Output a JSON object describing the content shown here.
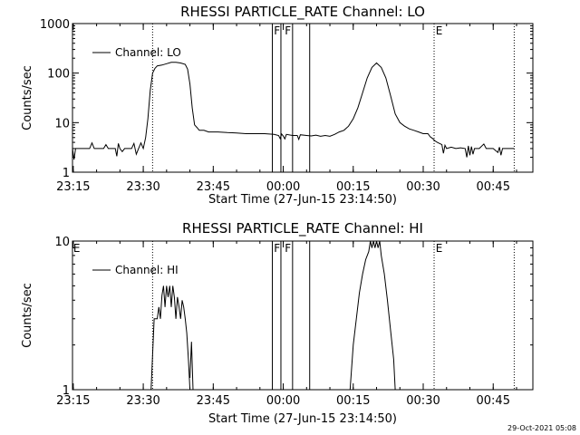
{
  "footer": {
    "timestamp": "29-Oct-2021 05:08"
  },
  "marker_labels": {
    "flag_f": "F",
    "flag_e": "E"
  },
  "chart_data": [
    {
      "type": "line",
      "title": "RHESSI PARTICLE_RATE Channel: LO",
      "xlabel": "Start Time (27-Jun-15 23:14:50)",
      "ylabel": "Counts/sec",
      "yscale": "log",
      "xlim": [
        "23:14:50",
        "00:53:30"
      ],
      "ylim": [
        1,
        1000
      ],
      "x_ticks": [
        "23:15",
        "23:30",
        "23:45",
        "00:00",
        "00:15",
        "00:30",
        "00:45"
      ],
      "y_ticks": [
        "1",
        "10",
        "100",
        "1000"
      ],
      "legend": {
        "position": "top-left",
        "entries": [
          "Channel: LO"
        ]
      },
      "dotted_markers": [
        "23:32:00",
        "00:32:20",
        "00:49:30"
      ],
      "solid_markers": [
        "23:57:40",
        "23:59:30",
        "00:02:00",
        "00:05:40"
      ],
      "marker_flags": [
        {
          "label": "F",
          "time": "23:58:00"
        },
        {
          "label": "F",
          "time": "00:00:20"
        },
        {
          "label": "E",
          "time": "00:32:40"
        }
      ],
      "series": [
        {
          "name": "Channel: LO",
          "points": [
            [
              "23:14:50",
              3
            ],
            [
              "23:15:10",
              1.8
            ],
            [
              "23:15:30",
              3
            ],
            [
              "23:18:30",
              3
            ],
            [
              "23:19:00",
              3.9
            ],
            [
              "23:19:30",
              3
            ],
            [
              "23:21:30",
              3
            ],
            [
              "23:22:00",
              3.6
            ],
            [
              "23:22:30",
              3
            ],
            [
              "23:24:00",
              3
            ],
            [
              "23:24:20",
              2.1
            ],
            [
              "23:24:40",
              3.8
            ],
            [
              "23:25:00",
              3
            ],
            [
              "23:25:30",
              2.6
            ],
            [
              "23:26:00",
              3
            ],
            [
              "23:27:30",
              3
            ],
            [
              "23:28:00",
              3.8
            ],
            [
              "23:28:30",
              2.3
            ],
            [
              "23:29:00",
              3
            ],
            [
              "23:29:30",
              3.9
            ],
            [
              "23:30:00",
              3
            ],
            [
              "23:30:30",
              5
            ],
            [
              "23:31:00",
              12
            ],
            [
              "23:31:30",
              45
            ],
            [
              "23:32:00",
              100
            ],
            [
              "23:32:30",
              125
            ],
            [
              "23:33:00",
              140
            ],
            [
              "23:34:00",
              145
            ],
            [
              "23:35:00",
              155
            ],
            [
              "23:36:00",
              165
            ],
            [
              "23:37:00",
              165
            ],
            [
              "23:38:00",
              160
            ],
            [
              "23:39:00",
              150
            ],
            [
              "23:39:30",
              120
            ],
            [
              "23:40:00",
              60
            ],
            [
              "23:40:30",
              20
            ],
            [
              "23:41:00",
              9
            ],
            [
              "23:41:30",
              8
            ],
            [
              "23:42:00",
              7
            ],
            [
              "23:43:00",
              7
            ],
            [
              "23:44:00",
              6.5
            ],
            [
              "23:46:00",
              6.5
            ],
            [
              "23:48:00",
              6.3
            ],
            [
              "23:50:00",
              6.2
            ],
            [
              "23:52:00",
              6
            ],
            [
              "23:54:00",
              6
            ],
            [
              "23:56:00",
              6
            ],
            [
              "23:58:00",
              5.8
            ],
            [
              "23:59:00",
              5.5
            ],
            [
              "23:59:20",
              4.8
            ],
            [
              "23:59:40",
              5.9
            ],
            [
              "00:00:00",
              5.4
            ],
            [
              "00:00:20",
              4.7
            ],
            [
              "00:00:40",
              5.8
            ],
            [
              "00:02:00",
              5.5
            ],
            [
              "00:03:00",
              5.5
            ],
            [
              "00:03:20",
              4.6
            ],
            [
              "00:03:40",
              5.7
            ],
            [
              "00:05:00",
              5.5
            ],
            [
              "00:06:00",
              5.4
            ],
            [
              "00:07:00",
              5.6
            ],
            [
              "00:08:00",
              5.3
            ],
            [
              "00:09:00",
              5.5
            ],
            [
              "00:10:00",
              5.3
            ],
            [
              "00:11:00",
              5.8
            ],
            [
              "00:12:00",
              6.5
            ],
            [
              "00:13:00",
              7
            ],
            [
              "00:14:00",
              8.5
            ],
            [
              "00:15:00",
              12
            ],
            [
              "00:16:00",
              20
            ],
            [
              "00:17:00",
              40
            ],
            [
              "00:18:00",
              80
            ],
            [
              "00:19:00",
              130
            ],
            [
              "00:20:00",
              160
            ],
            [
              "00:21:00",
              130
            ],
            [
              "00:22:00",
              80
            ],
            [
              "00:23:00",
              35
            ],
            [
              "00:24:00",
              15
            ],
            [
              "00:25:00",
              10
            ],
            [
              "00:26:00",
              8.5
            ],
            [
              "00:27:00",
              7.5
            ],
            [
              "00:28:00",
              7
            ],
            [
              "00:29:00",
              6.5
            ],
            [
              "00:30:00",
              6
            ],
            [
              "00:31:00",
              6
            ],
            [
              "00:31:30",
              5.2
            ],
            [
              "00:32:00",
              4.8
            ],
            [
              "00:32:30",
              4.3
            ],
            [
              "00:33:00",
              4
            ],
            [
              "00:34:00",
              3.6
            ],
            [
              "00:34:20",
              2.4
            ],
            [
              "00:34:40",
              3.5
            ],
            [
              "00:35:00",
              3
            ],
            [
              "00:36:00",
              3.2
            ],
            [
              "00:37:00",
              3
            ],
            [
              "00:38:00",
              3.1
            ],
            [
              "00:39:00",
              3
            ],
            [
              "00:39:20",
              2
            ],
            [
              "00:39:40",
              3.4
            ],
            [
              "00:40:00",
              2.2
            ],
            [
              "00:40:20",
              3.3
            ],
            [
              "00:40:40",
              2.3
            ],
            [
              "00:41:00",
              3
            ],
            [
              "00:42:00",
              3
            ],
            [
              "00:43:00",
              3.7
            ],
            [
              "00:43:30",
              3
            ],
            [
              "00:45:00",
              3
            ],
            [
              "00:46:00",
              2.5
            ],
            [
              "00:46:20",
              3.2
            ],
            [
              "00:46:40",
              2.2
            ],
            [
              "00:47:00",
              3
            ],
            [
              "00:48:00",
              3
            ],
            [
              "00:49:30",
              3
            ]
          ]
        }
      ]
    },
    {
      "type": "line",
      "title": "RHESSI PARTICLE_RATE Channel: HI",
      "xlabel": "Start Time (27-Jun-15 23:14:50)",
      "ylabel": "Counts/sec",
      "yscale": "log",
      "xlim": [
        "23:14:50",
        "00:53:30"
      ],
      "ylim": [
        1,
        10
      ],
      "x_ticks": [
        "23:15",
        "23:30",
        "23:45",
        "00:00",
        "00:15",
        "00:30",
        "00:45"
      ],
      "y_ticks": [
        "1",
        "10"
      ],
      "legend": {
        "position": "top-left",
        "entries": [
          "Channel: HI"
        ]
      },
      "dotted_markers": [
        "23:32:00",
        "00:32:20",
        "00:49:30"
      ],
      "solid_markers": [
        "23:57:40",
        "23:59:30",
        "00:02:00",
        "00:05:40"
      ],
      "marker_flags": [
        {
          "label": "E",
          "time": "23:15:00"
        },
        {
          "label": "F",
          "time": "23:58:00"
        },
        {
          "label": "F",
          "time": "00:00:20"
        },
        {
          "label": "E",
          "time": "00:32:40"
        }
      ],
      "series": [
        {
          "name": "Channel: HI",
          "points": [
            [
              "23:31:40",
              1
            ],
            [
              "23:32:20",
              3
            ],
            [
              "23:33:00",
              3
            ],
            [
              "23:33:20",
              3.6
            ],
            [
              "23:33:40",
              3
            ],
            [
              "23:34:00",
              4.3
            ],
            [
              "23:34:20",
              5
            ],
            [
              "23:34:40",
              3.6
            ],
            [
              "23:35:00",
              5
            ],
            [
              "23:35:20",
              4.2
            ],
            [
              "23:35:40",
              5
            ],
            [
              "23:36:00",
              3.6
            ],
            [
              "23:36:20",
              5
            ],
            [
              "23:36:40",
              4.2
            ],
            [
              "23:37:00",
              3
            ],
            [
              "23:37:20",
              4.2
            ],
            [
              "23:37:40",
              3.6
            ],
            [
              "23:38:00",
              3
            ],
            [
              "23:38:20",
              4
            ],
            [
              "23:38:40",
              3.6
            ],
            [
              "23:39:00",
              3
            ],
            [
              "23:39:20",
              2.4
            ],
            [
              "23:39:40",
              1.6
            ],
            [
              "23:40:00",
              1
            ]
          ]
        },
        {
          "name": "Channel: HI",
          "points": [
            [
              "23:40:00",
              1.2
            ],
            [
              "23:40:20",
              2.1
            ],
            [
              "23:40:40",
              1
            ]
          ]
        },
        {
          "name": "Channel: HI",
          "points": [
            [
              "00:14:20",
              1
            ],
            [
              "00:15:00",
              2
            ],
            [
              "00:15:40",
              3
            ],
            [
              "00:16:20",
              4.5
            ],
            [
              "00:17:00",
              6
            ],
            [
              "00:17:40",
              7.5
            ],
            [
              "00:18:20",
              8.5
            ],
            [
              "00:18:40",
              10
            ],
            [
              "00:19:00",
              9
            ],
            [
              "00:19:20",
              10
            ],
            [
              "00:19:40",
              9
            ],
            [
              "00:20:00",
              10
            ],
            [
              "00:20:20",
              9
            ],
            [
              "00:20:40",
              10
            ],
            [
              "00:21:00",
              8
            ],
            [
              "00:21:40",
              6
            ],
            [
              "00:22:20",
              4
            ],
            [
              "00:23:00",
              2.5
            ],
            [
              "00:23:40",
              1.6
            ],
            [
              "00:24:00",
              1
            ]
          ]
        }
      ]
    }
  ]
}
